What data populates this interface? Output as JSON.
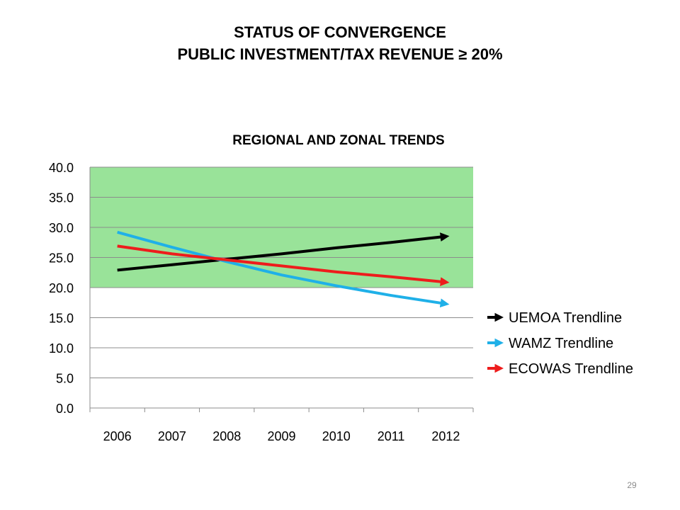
{
  "slide": {
    "title_line1": "STATUS OF CONVERGENCE",
    "title_line2": "PUBLIC INVESTMENT/TAX REVENUE ≥ 20%",
    "page_number": "29"
  },
  "chart_data": {
    "type": "line",
    "title": "REGIONAL AND ZONAL TRENDS",
    "xlabel": "",
    "ylabel": "",
    "categories": [
      "2006",
      "2007",
      "2008",
      "2009",
      "2010",
      "2011",
      "2012"
    ],
    "ylim": [
      0,
      40
    ],
    "yticks": [
      "0.0",
      "5.0",
      "10.0",
      "15.0",
      "20.0",
      "25.0",
      "30.0",
      "35.0",
      "40.0"
    ],
    "grid": true,
    "legend_position": "right",
    "target_band": {
      "from": 20,
      "to": 40,
      "color": "#99e399"
    },
    "series": [
      {
        "name": "UEMOA Trendline",
        "color": "#000000",
        "values": [
          22.9,
          23.8,
          24.7,
          25.6,
          26.6,
          27.5,
          28.5
        ]
      },
      {
        "name": "WAMZ Trendline",
        "color": "#1fb0e8",
        "values": [
          29.2,
          26.7,
          24.3,
          22.1,
          20.3,
          18.7,
          17.3
        ]
      },
      {
        "name": "ECOWAS Trendline",
        "color": "#ee1c1c",
        "values": [
          26.9,
          25.6,
          24.6,
          23.6,
          22.6,
          21.8,
          20.9
        ]
      }
    ]
  }
}
